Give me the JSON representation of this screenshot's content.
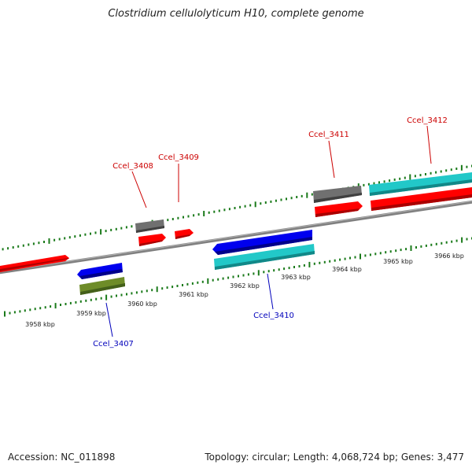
{
  "title": "Clostridium cellulolyticum H10, complete genome",
  "accession": "Accession: NC_011898",
  "stats": "Topology: circular; Length: 4,068,724 bp; Genes: 3,477",
  "colors": {
    "backbone": "#808080",
    "tick": "#1a7a1a",
    "label_forward": "#cc0000",
    "label_reverse": "#0000bb",
    "cds_red": "#ff0000",
    "cds_gray": "#707070",
    "cds_blue": "#0000ee",
    "cds_cyan": "#22c8c8",
    "cds_olive": "#6e8c28"
  },
  "scale_labels": [
    "3958 kbp",
    "3959 kbp",
    "3960 kbp",
    "3961 kbp",
    "3962 kbp",
    "3963 kbp",
    "3964 kbp",
    "3965 kbp",
    "3966 kbp"
  ],
  "gene_labels": [
    {
      "text": "Ccel_3407",
      "strand": "reverse"
    },
    {
      "text": "Ccel_3408",
      "strand": "forward"
    },
    {
      "text": "Ccel_3409",
      "strand": "forward"
    },
    {
      "text": "Ccel_3410",
      "strand": "reverse"
    },
    {
      "text": "Ccel_3411",
      "strand": "forward"
    },
    {
      "text": "Ccel_3412",
      "strand": "forward"
    }
  ]
}
